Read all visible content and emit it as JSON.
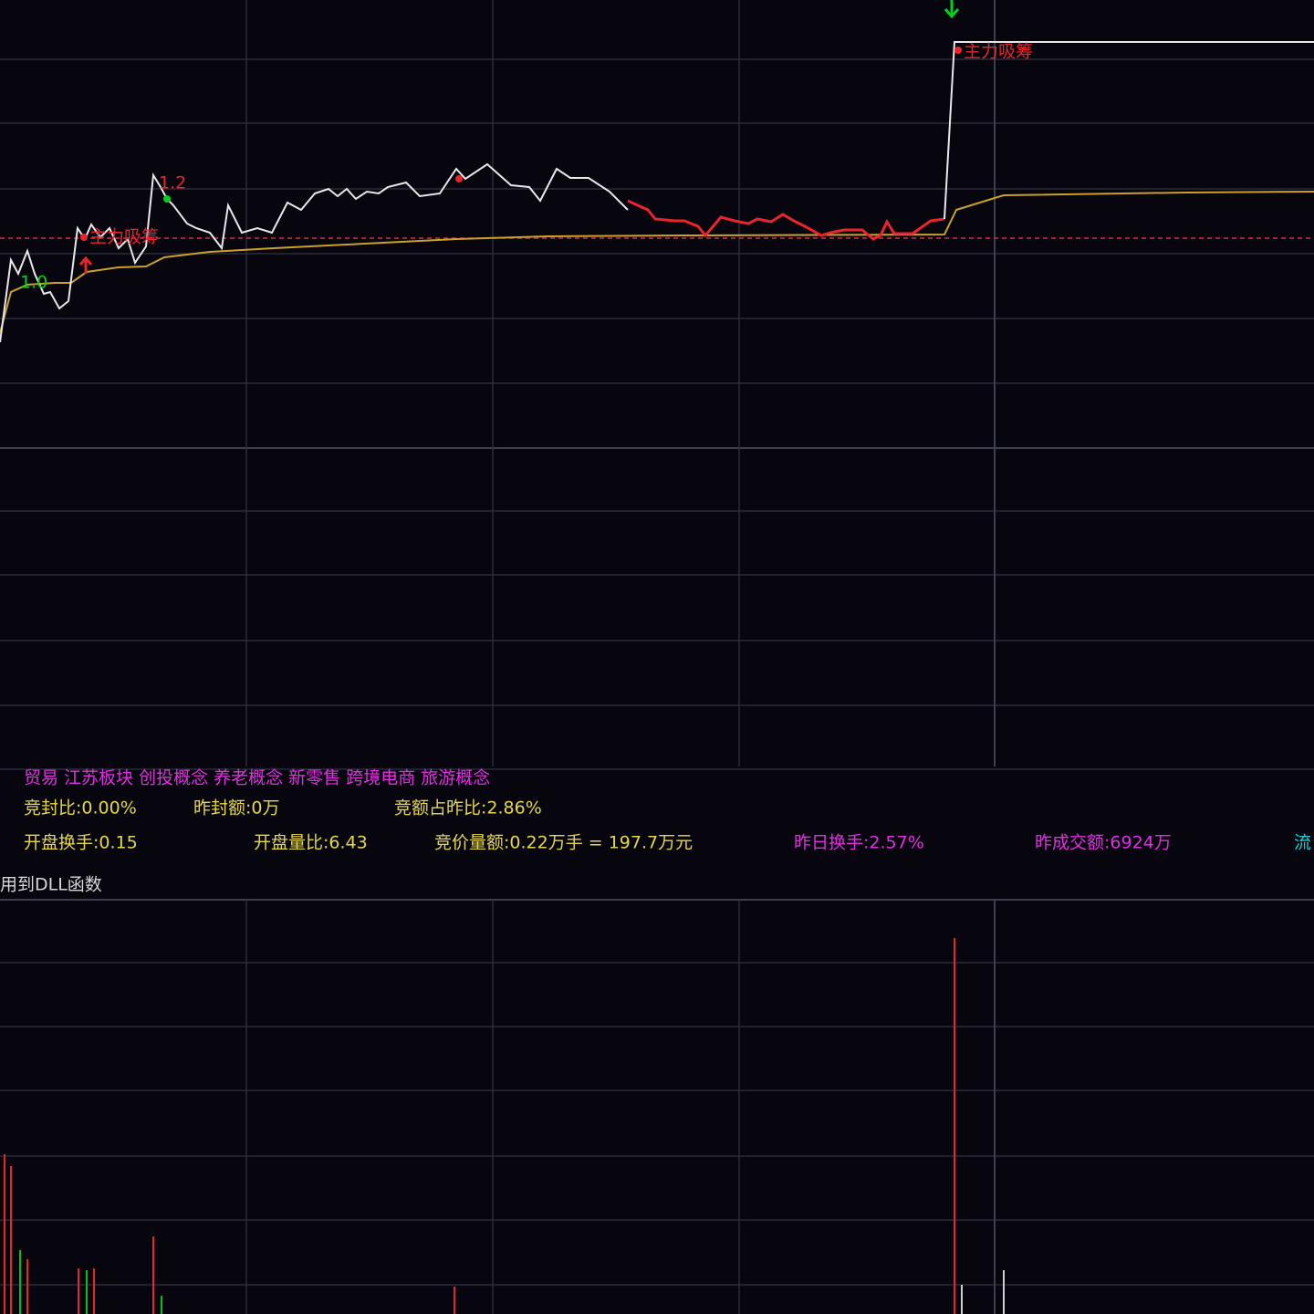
{
  "signals": {
    "top": "主力吸筹",
    "left": "主力吸筹",
    "mark_a": "1.2",
    "mark_b": "1.0"
  },
  "concepts": "贸易 江苏板块 创投概念 养老概念 新零售 跨境电商 旅游概念",
  "stats": {
    "row1": [
      "竞封比:0.00%",
      "昨封额:0万",
      "竞额占昨比:2.86%"
    ],
    "row2": [
      "开盘换手:0.15",
      "开盘量比:6.43",
      "竞价量额:0.22万手 = 197.7万元",
      "昨日换手:2.57%",
      "昨成交额:6924万",
      "流"
    ]
  },
  "footer": "用到DLL函数"
}
